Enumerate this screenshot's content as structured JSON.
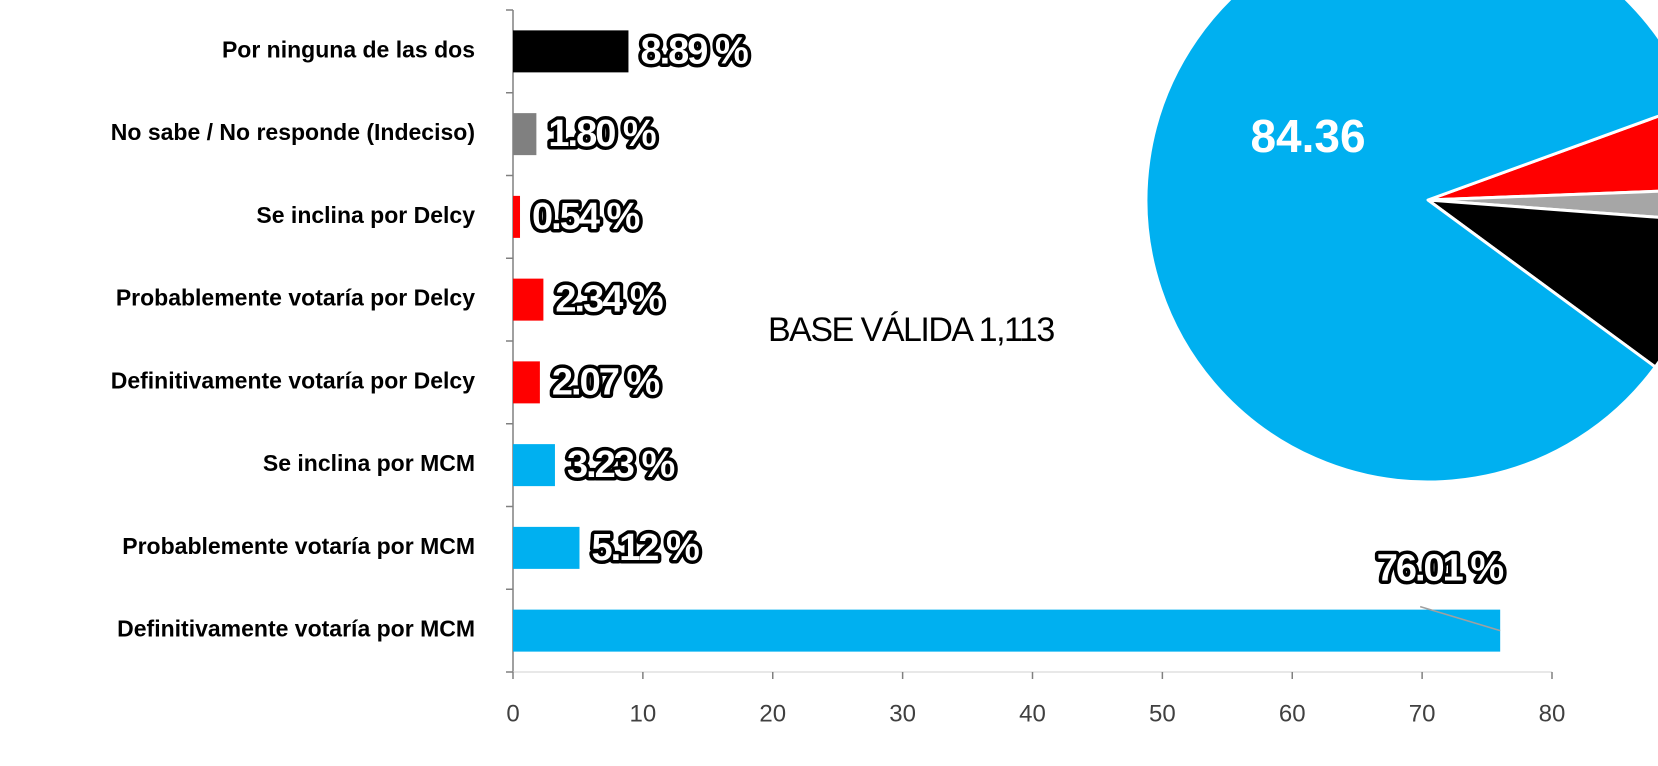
{
  "chart_data": [
    {
      "type": "barh",
      "categories": [
        "Por ninguna de las dos",
        "No sabe / No responde (Indeciso)",
        "Se inclina por Delcy",
        "Probablemente votaría por Delcy",
        "Definitivamente votaría por Delcy",
        "Se inclina por MCM",
        "Probablemente votaría por MCM",
        "Definitivamente votaría por MCM"
      ],
      "values": [
        8.89,
        1.8,
        0.54,
        2.34,
        2.07,
        3.23,
        5.12,
        76.01
      ],
      "value_labels": [
        "8.89 %",
        "1.80 %",
        "0.54 %",
        "2.34 %",
        "2.07 %",
        "3.23 %",
        "5.12 %",
        "76.01 %"
      ],
      "colors": [
        "#000000",
        "#808080",
        "#ff0000",
        "#ff0000",
        "#ff0000",
        "#00b0f0",
        "#00b0f0",
        "#00b0f0"
      ],
      "xlim": [
        0,
        80
      ],
      "xticks": [
        0,
        10,
        20,
        30,
        40,
        50,
        60,
        70,
        80
      ],
      "annotation": "BASE VÁLIDA 1,113"
    },
    {
      "type": "pie",
      "categories": [
        null,
        null,
        null,
        null
      ],
      "values": [
        84.36,
        4.95,
        1.8,
        8.89
      ],
      "value_labels": [
        "84.36",
        null,
        null,
        null
      ],
      "colors": [
        "#00b0f0",
        "#ff0000",
        "#a6a6a6",
        "#000000"
      ]
    }
  ]
}
